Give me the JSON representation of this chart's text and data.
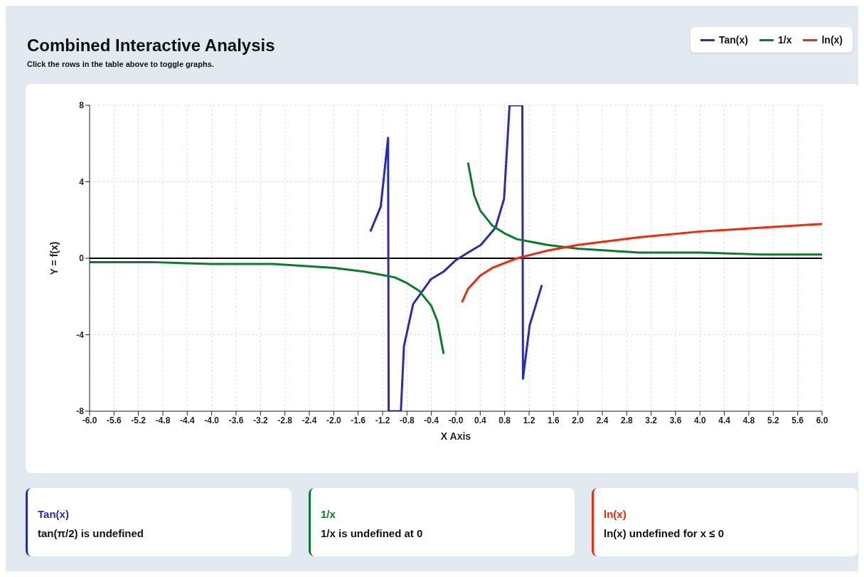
{
  "chart_data": {
    "type": "line",
    "title": "Combined Interactive Analysis",
    "subtitle": "Click the rows in the table above to toggle graphs.",
    "xlabel": "X Axis",
    "ylabel": "Y = f(x)",
    "series": [
      {
        "name": "Tan(x)",
        "color": "#2b2bb0",
        "x": [
          -1.4,
          -1.23,
          -1.11,
          -1.1,
          -0.9,
          -0.85,
          -0.7,
          -0.41,
          -0.2,
          0,
          0.2,
          0.41,
          0.65,
          0.79,
          0.88,
          1.09,
          1.1,
          1.21,
          1.41
        ],
        "values": [
          1.4,
          2.7,
          6.3,
          -8,
          -8,
          -4.6,
          -2.4,
          -1.1,
          -0.7,
          -0.1,
          0.3,
          0.7,
          1.6,
          3.1,
          8,
          8,
          -6.3,
          -3.5,
          -1.4
        ]
      },
      {
        "name": "1/x",
        "color": "#0b7a2e",
        "x": [
          -6,
          -5,
          -4,
          -3,
          -2,
          -1.5,
          -1,
          -0.8,
          -0.6,
          -0.4,
          -0.3,
          -0.2,
          0,
          0.2,
          0.3,
          0.4,
          0.6,
          0.8,
          1,
          1.5,
          2,
          3,
          4,
          5,
          6
        ],
        "values": [
          -0.2,
          -0.2,
          -0.3,
          -0.3,
          -0.5,
          -0.7,
          -1,
          -1.3,
          -1.7,
          -2.5,
          -3.3,
          -5,
          null,
          5,
          3.3,
          2.5,
          1.7,
          1.3,
          1,
          0.7,
          0.5,
          0.3,
          0.3,
          0.2,
          0.2
        ]
      },
      {
        "name": "ln(x)",
        "color": "#f02a0a",
        "x": [
          0.1,
          0.2,
          0.4,
          0.6,
          1,
          1.5,
          2,
          3,
          4,
          5,
          6
        ],
        "values": [
          -2.3,
          -1.6,
          -0.9,
          -0.5,
          0,
          0.4,
          0.7,
          1.1,
          1.4,
          1.6,
          1.8
        ]
      }
    ],
    "xlim": [
      -6,
      6
    ],
    "xticks": [
      {
        "value": -6,
        "label": "-6.0"
      },
      {
        "value": -5.6,
        "label": "-5.6"
      },
      {
        "value": -5.2,
        "label": "-5.2"
      },
      {
        "value": -4.8,
        "label": "-4.8"
      },
      {
        "value": -4.4,
        "label": "-4.4"
      },
      {
        "value": -4,
        "label": "-4.0"
      },
      {
        "value": -3.6,
        "label": "-3.6"
      },
      {
        "value": -3.2,
        "label": "-3.2"
      },
      {
        "value": -2.8,
        "label": "-2.8"
      },
      {
        "value": -2.4,
        "label": "-2.4"
      },
      {
        "value": -2,
        "label": "-2.0"
      },
      {
        "value": -1.6,
        "label": "-1.6"
      },
      {
        "value": -1.2,
        "label": "-1.2"
      },
      {
        "value": -0.8,
        "label": "-0.8"
      },
      {
        "value": -0.4,
        "label": "-0.4"
      },
      {
        "value": 0,
        "label": "-0.0"
      },
      {
        "value": 0.4,
        "label": "0.4"
      },
      {
        "value": 0.8,
        "label": "0.8"
      },
      {
        "value": 1.2,
        "label": "1.2"
      },
      {
        "value": 1.6,
        "label": "1.6"
      },
      {
        "value": 2,
        "label": "2.0"
      },
      {
        "value": 2.4,
        "label": "2.4"
      },
      {
        "value": 2.8,
        "label": "2.8"
      },
      {
        "value": 3.2,
        "label": "3.2"
      },
      {
        "value": 3.6,
        "label": "3.6"
      },
      {
        "value": 4,
        "label": "4.0"
      },
      {
        "value": 4.4,
        "label": "4.4"
      },
      {
        "value": 4.8,
        "label": "4.8"
      },
      {
        "value": 5.2,
        "label": "5.2"
      },
      {
        "value": 5.6,
        "label": "5.6"
      },
      {
        "value": 6,
        "label": "6.0"
      }
    ],
    "ylim": [
      -8,
      8
    ],
    "yticks": [
      -8,
      -4,
      0,
      4,
      8
    ],
    "ref_lines": [
      {
        "axis": "y",
        "value": 0,
        "color": "#000000"
      }
    ],
    "grid": true,
    "legend": "top right",
    "marker": "none",
    "line_style": "solid",
    "annotations": [
      "Tan(x)",
      "tan(π/2) is undefined",
      "1/x",
      "1/x is undefined at 0",
      "ln(x)",
      "ln(x) undefined for x ≤ 0"
    ]
  }
}
